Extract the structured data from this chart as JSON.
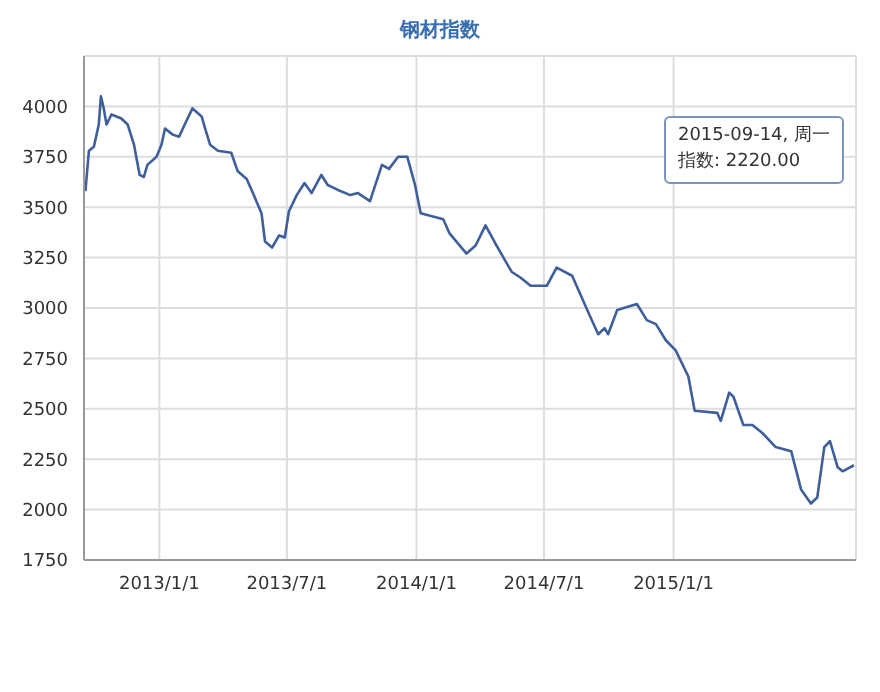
{
  "chart_data": {
    "type": "line",
    "title": "钢材指数",
    "x": [
      "2012-09-18",
      "2012-09-23",
      "2012-09-30",
      "2012-10-07",
      "2012-10-10",
      "2012-10-14",
      "2012-10-18",
      "2012-10-25",
      "2012-11-08",
      "2012-11-17",
      "2012-11-26",
      "2012-12-04",
      "2012-12-10",
      "2012-12-15",
      "2012-12-28",
      "2013-01-04",
      "2013-01-09",
      "2013-01-20",
      "2013-01-29",
      "2013-02-06",
      "2013-02-17",
      "2013-03-02",
      "2013-03-07",
      "2013-03-14",
      "2013-03-25",
      "2013-04-13",
      "2013-04-22",
      "2013-05-05",
      "2013-05-15",
      "2013-05-26",
      "2013-05-31",
      "2013-06-10",
      "2013-06-20",
      "2013-06-28",
      "2013-07-04",
      "2013-07-15",
      "2013-07-26",
      "2013-08-05",
      "2013-08-19",
      "2013-08-28",
      "2013-09-15",
      "2013-09-29",
      "2013-10-10",
      "2013-10-27",
      "2013-11-13",
      "2013-11-23",
      "2013-12-06",
      "2013-12-19",
      "2013-12-30",
      "2014-01-07",
      "2014-02-08",
      "2014-02-17",
      "2014-03-13",
      "2014-03-26",
      "2014-04-09",
      "2014-04-23",
      "2014-05-16",
      "2014-05-29",
      "2014-06-12",
      "2014-07-05",
      "2014-07-19",
      "2014-08-10",
      "2014-09-03",
      "2014-09-16",
      "2014-09-25",
      "2014-09-30",
      "2014-10-13",
      "2014-11-10",
      "2014-11-24",
      "2014-12-07",
      "2014-12-21",
      "2015-01-04",
      "2015-01-22",
      "2015-01-31",
      "2015-03-04",
      "2015-03-09",
      "2015-03-21",
      "2015-03-27",
      "2015-04-10",
      "2015-04-23",
      "2015-05-07",
      "2015-05-26",
      "2015-06-17",
      "2015-07-01",
      "2015-07-15",
      "2015-07-24",
      "2015-08-03",
      "2015-08-11",
      "2015-08-22",
      "2015-08-29",
      "2015-09-14"
    ],
    "series": [
      {
        "color": "#3f5f9a",
        "values": [
          3580,
          3780,
          3800,
          3910,
          4050,
          3990,
          3910,
          3960,
          3940,
          3910,
          3810,
          3660,
          3650,
          3710,
          3750,
          3810,
          3890,
          3860,
          3850,
          3910,
          3990,
          3950,
          3890,
          3810,
          3780,
          3770,
          3680,
          3640,
          3560,
          3470,
          3330,
          3300,
          3360,
          3350,
          3480,
          3560,
          3620,
          3570,
          3660,
          3610,
          3580,
          3560,
          3570,
          3530,
          3710,
          3690,
          3750,
          3750,
          3610,
          3470,
          3440,
          3370,
          3270,
          3310,
          3410,
          3320,
          3180,
          3150,
          3110,
          3110,
          3200,
          3160,
          2970,
          2870,
          2900,
          2870,
          2990,
          3020,
          2940,
          2920,
          2840,
          2790,
          2660,
          2490,
          2480,
          2440,
          2580,
          2560,
          2420,
          2420,
          2380,
          2310,
          2290,
          2100,
          2030,
          2060,
          2310,
          2340,
          2210,
          2190,
          2220
        ]
      }
    ],
    "xlim": [
      "2012-09-16",
      "2015-09-17"
    ],
    "xticks": [
      {
        "value": "2013-01-01",
        "label": "2013/1/1"
      },
      {
        "value": "2013-07-01",
        "label": "2013/7/1"
      },
      {
        "value": "2014-01-01",
        "label": "2014/1/1"
      },
      {
        "value": "2014-07-01",
        "label": "2014/7/1"
      },
      {
        "value": "2015-01-01",
        "label": "2015/1/1"
      }
    ],
    "ylim": [
      1750,
      4250
    ],
    "yticks": [
      1750,
      2000,
      2250,
      2500,
      2750,
      3000,
      3250,
      3500,
      3750,
      4000
    ],
    "grid": true,
    "marker": "none",
    "annotations": [
      "2015-09-14, 周一",
      "指数: 2220.00"
    ]
  }
}
